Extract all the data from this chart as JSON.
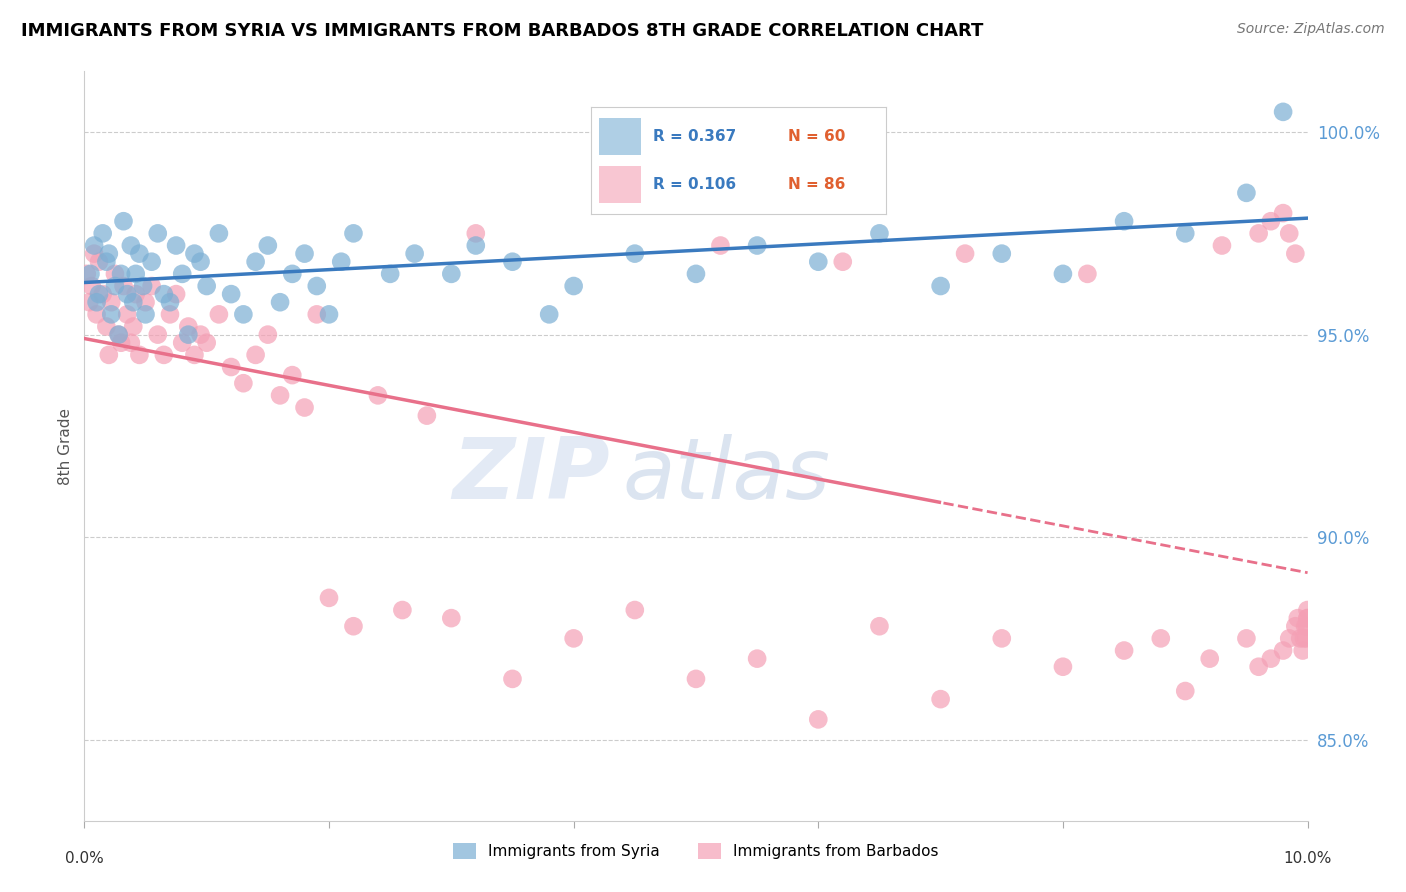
{
  "title": "IMMIGRANTS FROM SYRIA VS IMMIGRANTS FROM BARBADOS 8TH GRADE CORRELATION CHART",
  "source": "Source: ZipAtlas.com",
  "ylabel": "8th Grade",
  "xlim": [
    0.0,
    10.0
  ],
  "ylim": [
    83.0,
    101.5
  ],
  "yticks": [
    85.0,
    90.0,
    95.0,
    100.0
  ],
  "legend_R_syria": "R = 0.367",
  "legend_N_syria": "N = 60",
  "legend_R_barbados": "R = 0.106",
  "legend_N_barbados": "N = 86",
  "syria_color": "#7bafd4",
  "barbados_color": "#f4a0b5",
  "syria_line_color": "#3a7abf",
  "barbados_line_color": "#e8708a",
  "watermark_zip": "ZIP",
  "watermark_atlas": "atlas",
  "syria_x": [
    0.05,
    0.08,
    0.1,
    0.12,
    0.15,
    0.18,
    0.2,
    0.22,
    0.25,
    0.28,
    0.3,
    0.32,
    0.35,
    0.38,
    0.4,
    0.42,
    0.45,
    0.48,
    0.5,
    0.55,
    0.6,
    0.65,
    0.7,
    0.75,
    0.8,
    0.85,
    0.9,
    0.95,
    1.0,
    1.1,
    1.2,
    1.3,
    1.4,
    1.5,
    1.6,
    1.7,
    1.8,
    1.9,
    2.0,
    2.1,
    2.2,
    2.5,
    2.7,
    3.0,
    3.2,
    3.5,
    3.8,
    4.0,
    4.5,
    5.0,
    5.5,
    6.0,
    6.5,
    7.0,
    7.5,
    8.0,
    8.5,
    9.0,
    9.5,
    9.8
  ],
  "syria_y": [
    96.5,
    97.2,
    95.8,
    96.0,
    97.5,
    96.8,
    97.0,
    95.5,
    96.2,
    95.0,
    96.5,
    97.8,
    96.0,
    97.2,
    95.8,
    96.5,
    97.0,
    96.2,
    95.5,
    96.8,
    97.5,
    96.0,
    95.8,
    97.2,
    96.5,
    95.0,
    97.0,
    96.8,
    96.2,
    97.5,
    96.0,
    95.5,
    96.8,
    97.2,
    95.8,
    96.5,
    97.0,
    96.2,
    95.5,
    96.8,
    97.5,
    96.5,
    97.0,
    96.5,
    97.2,
    96.8,
    95.5,
    96.2,
    97.0,
    96.5,
    97.2,
    96.8,
    97.5,
    96.2,
    97.0,
    96.5,
    97.8,
    97.5,
    98.5,
    100.5
  ],
  "barbados_x": [
    0.02,
    0.04,
    0.06,
    0.08,
    0.1,
    0.12,
    0.15,
    0.18,
    0.2,
    0.22,
    0.25,
    0.28,
    0.3,
    0.32,
    0.35,
    0.38,
    0.4,
    0.42,
    0.45,
    0.5,
    0.55,
    0.6,
    0.65,
    0.7,
    0.75,
    0.8,
    0.85,
    0.9,
    0.95,
    1.0,
    1.1,
    1.2,
    1.3,
    1.4,
    1.5,
    1.6,
    1.7,
    1.8,
    1.9,
    2.0,
    2.2,
    2.4,
    2.6,
    2.8,
    3.0,
    3.5,
    4.0,
    4.5,
    5.0,
    5.5,
    6.0,
    6.5,
    7.0,
    7.5,
    8.0,
    8.5,
    8.8,
    9.0,
    9.2,
    9.5,
    9.6,
    9.7,
    9.8,
    9.85,
    9.9,
    9.92,
    9.94,
    9.96,
    9.97,
    9.98,
    9.99,
    9.995,
    9.998,
    9.999,
    10.0,
    3.2,
    5.2,
    6.2,
    7.2,
    8.2,
    9.3,
    9.6,
    9.7,
    9.8,
    9.85,
    9.9
  ],
  "barbados_y": [
    96.5,
    95.8,
    96.2,
    97.0,
    95.5,
    96.8,
    96.0,
    95.2,
    94.5,
    95.8,
    96.5,
    95.0,
    94.8,
    96.2,
    95.5,
    94.8,
    95.2,
    96.0,
    94.5,
    95.8,
    96.2,
    95.0,
    94.5,
    95.5,
    96.0,
    94.8,
    95.2,
    94.5,
    95.0,
    94.8,
    95.5,
    94.2,
    93.8,
    94.5,
    95.0,
    93.5,
    94.0,
    93.2,
    95.5,
    88.5,
    87.8,
    93.5,
    88.2,
    93.0,
    88.0,
    86.5,
    87.5,
    88.2,
    86.5,
    87.0,
    85.5,
    87.8,
    86.0,
    87.5,
    86.8,
    87.2,
    87.5,
    86.2,
    87.0,
    87.5,
    86.8,
    87.0,
    87.2,
    87.5,
    87.8,
    88.0,
    87.5,
    87.2,
    87.5,
    87.8,
    87.5,
    87.8,
    88.0,
    88.2,
    88.0,
    97.5,
    97.2,
    96.8,
    97.0,
    96.5,
    97.2,
    97.5,
    97.8,
    98.0,
    97.5,
    97.0
  ]
}
